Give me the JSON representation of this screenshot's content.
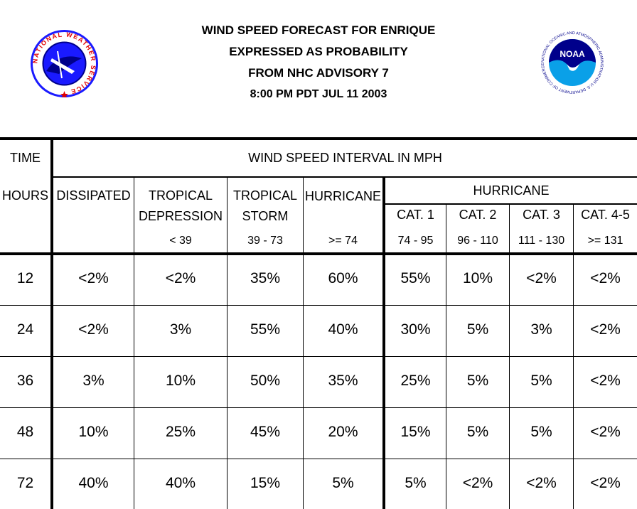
{
  "title": {
    "line1": "WIND SPEED FORECAST FOR ENRIQUE",
    "line2": "EXPRESSED AS PROBABILITY",
    "line3": "FROM NHC ADVISORY   7",
    "line4": "8:00 PM PDT JUL 11 2003"
  },
  "logos": {
    "nws_icon": "national-weather-service-seal",
    "nws_ring_text": "NATIONAL WEATHER SERVICE",
    "noaa_icon": "noaa-seal",
    "noaa_center_text": "NOAA",
    "noaa_ring_text": "NATIONAL OCEANIC AND ATMOSPHERIC ADMINISTRATION U.S. DEPARTMENT OF COMMERCE",
    "colors": {
      "blue": "#1a1aff",
      "dark_blue": "#00008b",
      "light_blue": "#0aa0e8",
      "red": "#e00000"
    }
  },
  "headers": {
    "time": "TIME",
    "interval": "WIND SPEED INTERVAL IN MPH",
    "hours": "HOURS",
    "dissipated": "DISSIPATED",
    "td_line1": "TROPICAL",
    "td_line2": "DEPRESSION",
    "td_range": "< 39",
    "ts_line1": "TROPICAL",
    "ts_line2": "STORM",
    "ts_range": "39 - 73",
    "hurricane": "HURRICANE",
    "hurricane_range": ">= 74",
    "hurricane_group": "HURRICANE",
    "cat1": "CAT. 1",
    "cat1_range": "74 - 95",
    "cat2": "CAT. 2",
    "cat2_range": "96 - 110",
    "cat3": "CAT. 3",
    "cat3_range": "111 - 130",
    "cat45": "CAT. 4-5",
    "cat45_range": ">= 131"
  },
  "rows": [
    {
      "hours": "12",
      "values": [
        "<2%",
        "<2%",
        "35%",
        "60%",
        "55%",
        "10%",
        "<2%",
        "<2%"
      ]
    },
    {
      "hours": "24",
      "values": [
        "<2%",
        "3%",
        "55%",
        "40%",
        "30%",
        "5%",
        "3%",
        "<2%"
      ]
    },
    {
      "hours": "36",
      "values": [
        "3%",
        "10%",
        "50%",
        "35%",
        "25%",
        "5%",
        "5%",
        "<2%"
      ]
    },
    {
      "hours": "48",
      "values": [
        "10%",
        "25%",
        "45%",
        "20%",
        "15%",
        "5%",
        "5%",
        "<2%"
      ]
    },
    {
      "hours": "72",
      "values": [
        "40%",
        "40%",
        "15%",
        "5%",
        "5%",
        "<2%",
        "<2%",
        "<2%"
      ]
    }
  ]
}
